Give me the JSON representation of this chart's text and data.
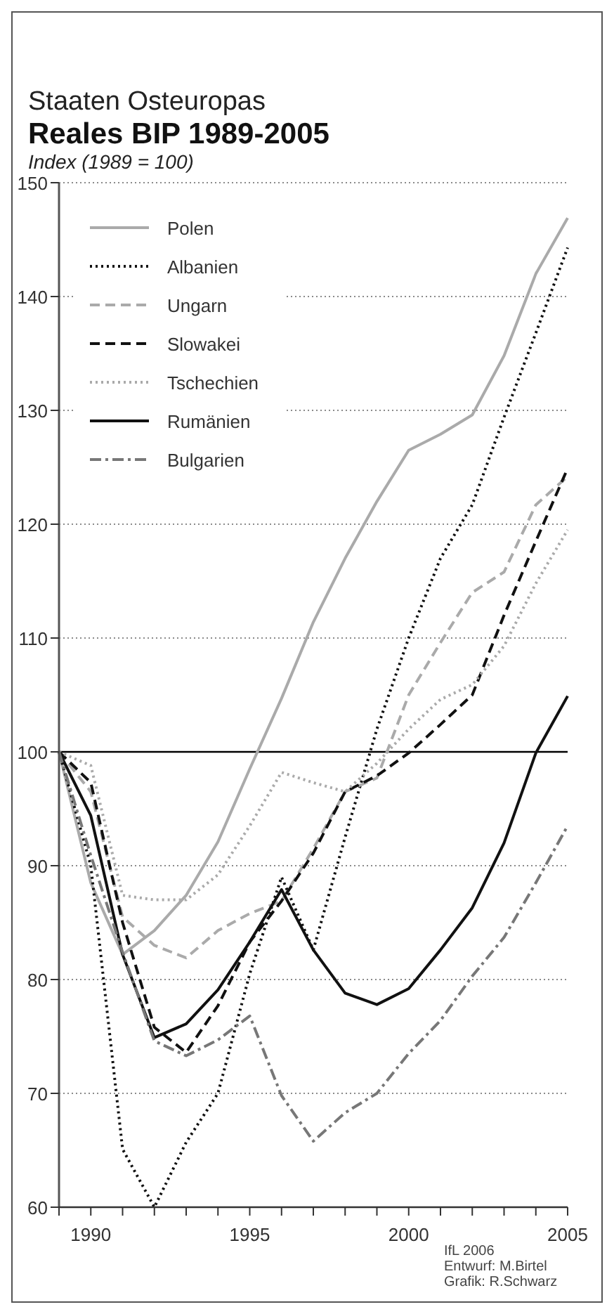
{
  "chart_data": {
    "type": "line",
    "title": "Reales BIP 1989-2005",
    "subtitle": "Staaten Osteuropas",
    "ylabel": "Index (1989 = 100)",
    "x": [
      1989,
      1990,
      1991,
      1992,
      1993,
      1994,
      1995,
      1996,
      1997,
      1998,
      1999,
      2000,
      2001,
      2002,
      2003,
      2004,
      2005
    ],
    "xlim": [
      1989,
      2005
    ],
    "xticks": [
      {
        "value": 1989,
        "label": null
      },
      1990,
      {
        "value": 1991,
        "label": null
      },
      {
        "value": 1992,
        "label": null
      },
      {
        "value": 1993,
        "label": null
      },
      {
        "value": 1994,
        "label": null
      },
      1995,
      {
        "value": 1996,
        "label": null
      },
      {
        "value": 1997,
        "label": null
      },
      {
        "value": 1998,
        "label": null
      },
      {
        "value": 1999,
        "label": null
      },
      2000,
      {
        "value": 2001,
        "label": null
      },
      {
        "value": 2002,
        "label": null
      },
      {
        "value": 2003,
        "label": null
      },
      {
        "value": 2004,
        "label": null
      },
      2005
    ],
    "ylim": [
      60,
      150
    ],
    "yticks": [
      60,
      70,
      80,
      90,
      100,
      110,
      120,
      130,
      140,
      150
    ],
    "grid": "y",
    "legend": "top left",
    "ref_lines": [
      {
        "axis": "y",
        "value": 100,
        "color": "#000000",
        "line_style": "solid"
      }
    ],
    "series": [
      {
        "name": "Polen",
        "color": "#aaaaaa",
        "line_style": "solid",
        "values": [
          100,
          88.5,
          82.2,
          84.3,
          87.4,
          92.1,
          98.5,
          104.7,
          111.4,
          117,
          122,
          126.5,
          127.9,
          129.6,
          134.8,
          142,
          146.9
        ]
      },
      {
        "name": "Albanien",
        "color": "#111111",
        "line_style": "dotted",
        "values": [
          100,
          90,
          65.1,
          60,
          65.7,
          70,
          80.5,
          89,
          82.6,
          92.5,
          102,
          110,
          117,
          121.7,
          129.4,
          136.8,
          144.3
        ]
      },
      {
        "name": "Ungarn",
        "color": "#aaaaaa",
        "line_style": "dashed",
        "values": [
          100,
          96.5,
          85.5,
          83,
          81.9,
          84.3,
          85.8,
          86.9,
          91.5,
          96.5,
          97.7,
          105,
          109.6,
          114,
          115.8,
          121.7,
          124.2
        ]
      },
      {
        "name": "Slowakei",
        "color": "#111111",
        "line_style": "dashed",
        "values": [
          100,
          97.3,
          85,
          75.8,
          73.6,
          77.7,
          83.3,
          86.9,
          91.1,
          96.5,
          97.9,
          99.9,
          102.4,
          105,
          112,
          118.5,
          124.9
        ]
      },
      {
        "name": "Tschechien",
        "color": "#aaaaaa",
        "line_style": "dotted",
        "values": [
          100,
          98.8,
          87.4,
          87,
          87,
          89.2,
          93.5,
          98.2,
          97.3,
          96.5,
          99,
          102,
          104.6,
          105.9,
          109.3,
          114.8,
          119.5
        ]
      },
      {
        "name": "Rumänien",
        "color": "#111111",
        "line_style": "solid",
        "values": [
          100,
          94.4,
          82.2,
          74.9,
          76.1,
          79.1,
          83.3,
          87.9,
          82.6,
          78.8,
          77.8,
          79.2,
          82.6,
          86.3,
          92,
          99.9,
          104.9
        ]
      },
      {
        "name": "Bulgarien",
        "color": "#777777",
        "line_style": "dashdot",
        "values": [
          100,
          90.9,
          82.4,
          74.6,
          73.3,
          74.7,
          76.8,
          69.8,
          65.8,
          68.3,
          70,
          73.5,
          76.4,
          80.3,
          83.7,
          88.5,
          93.5
        ]
      }
    ],
    "annotations": [
      "IfL 2006",
      "Entwurf: M.Birtel",
      "Grafik: R.Schwarz"
    ]
  }
}
